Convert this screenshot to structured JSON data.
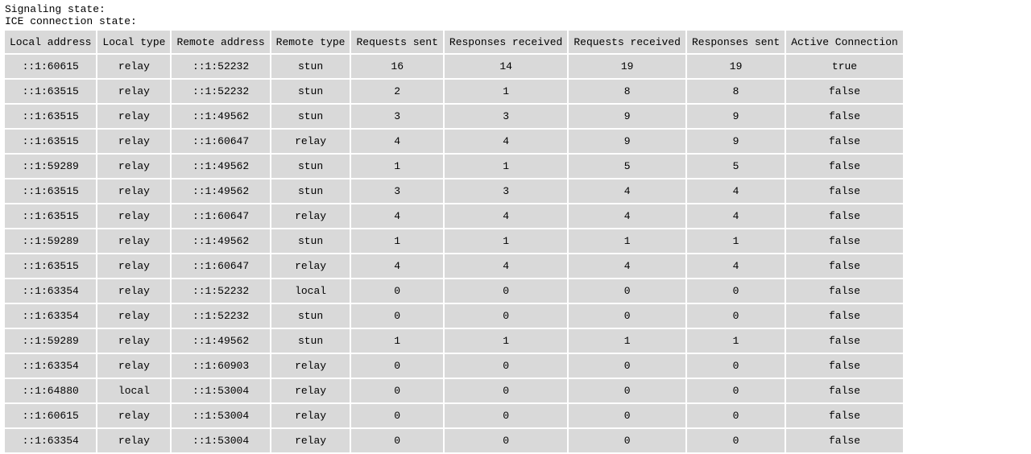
{
  "signaling_label": "Signaling state:",
  "ice_label": "ICE connection state:",
  "table": {
    "headers": [
      "Local address",
      "Local type",
      "Remote address",
      "Remote type",
      "Requests sent",
      "Responses received",
      "Requests received",
      "Responses sent",
      "Active Connection"
    ],
    "rows": [
      [
        "::1:60615",
        "relay",
        "::1:52232",
        "stun",
        "16",
        "14",
        "19",
        "19",
        "true"
      ],
      [
        "::1:63515",
        "relay",
        "::1:52232",
        "stun",
        "2",
        "1",
        "8",
        "8",
        "false"
      ],
      [
        "::1:63515",
        "relay",
        "::1:49562",
        "stun",
        "3",
        "3",
        "9",
        "9",
        "false"
      ],
      [
        "::1:63515",
        "relay",
        "::1:60647",
        "relay",
        "4",
        "4",
        "9",
        "9",
        "false"
      ],
      [
        "::1:59289",
        "relay",
        "::1:49562",
        "stun",
        "1",
        "1",
        "5",
        "5",
        "false"
      ],
      [
        "::1:63515",
        "relay",
        "::1:49562",
        "stun",
        "3",
        "3",
        "4",
        "4",
        "false"
      ],
      [
        "::1:63515",
        "relay",
        "::1:60647",
        "relay",
        "4",
        "4",
        "4",
        "4",
        "false"
      ],
      [
        "::1:59289",
        "relay",
        "::1:49562",
        "stun",
        "1",
        "1",
        "1",
        "1",
        "false"
      ],
      [
        "::1:63515",
        "relay",
        "::1:60647",
        "relay",
        "4",
        "4",
        "4",
        "4",
        "false"
      ],
      [
        "::1:63354",
        "relay",
        "::1:52232",
        "local",
        "0",
        "0",
        "0",
        "0",
        "false"
      ],
      [
        "::1:63354",
        "relay",
        "::1:52232",
        "stun",
        "0",
        "0",
        "0",
        "0",
        "false"
      ],
      [
        "::1:59289",
        "relay",
        "::1:49562",
        "stun",
        "1",
        "1",
        "1",
        "1",
        "false"
      ],
      [
        "::1:63354",
        "relay",
        "::1:60903",
        "relay",
        "0",
        "0",
        "0",
        "0",
        "false"
      ],
      [
        "::1:64880",
        "local",
        "::1:53004",
        "relay",
        "0",
        "0",
        "0",
        "0",
        "false"
      ],
      [
        "::1:60615",
        "relay",
        "::1:53004",
        "relay",
        "0",
        "0",
        "0",
        "0",
        "false"
      ],
      [
        "::1:63354",
        "relay",
        "::1:53004",
        "relay",
        "0",
        "0",
        "0",
        "0",
        "false"
      ]
    ]
  }
}
